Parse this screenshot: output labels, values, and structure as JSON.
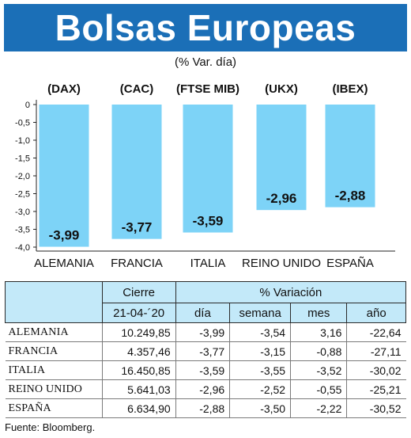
{
  "header": {
    "title": "Bolsas Europeas",
    "subtitle": "(% Var. día)"
  },
  "colors": {
    "header_bg": "#1b6fb7",
    "bar": "#7dd3f7",
    "table_header_bg": "#c3e9f9"
  },
  "chart_data": {
    "type": "bar",
    "categories": [
      "ALEMANIA",
      "FRANCIA",
      "ITALIA",
      "REINO UNIDO",
      "ESPAÑA"
    ],
    "index_labels": [
      "(DAX)",
      "(CAC)",
      "(FTSE MIB)",
      "(UKX)",
      "(IBEX)"
    ],
    "values": [
      -3.99,
      -3.77,
      -3.59,
      -2.96,
      -2.88
    ],
    "value_labels": [
      "-3,99",
      "-3,77",
      "-3,59",
      "-2,96",
      "-2,88"
    ],
    "yticks": [
      0,
      -0.5,
      -1.0,
      -1.5,
      -2.0,
      -2.5,
      -3.0,
      -3.5,
      -4.0
    ],
    "ytick_labels": [
      "0",
      "-0,5",
      "-1,0",
      "-1,5",
      "-2,0",
      "-2,5",
      "-3,0",
      "-3,5",
      "-4,0"
    ],
    "ylim": [
      -4.0,
      0
    ],
    "grid": false,
    "title": "Bolsas Europeas",
    "subtitle": "(% Var. día)"
  },
  "table": {
    "header_row1": [
      "",
      "Cierre",
      "% Variación"
    ],
    "header_row2": [
      "",
      "21-04-´20",
      "día",
      "semana",
      "mes",
      "año"
    ],
    "rows": [
      [
        "ALEMANIA",
        "10.249,85",
        "-3,99",
        "-3,54",
        "3,16",
        "-22,64"
      ],
      [
        "FRANCIA",
        "4.357,46",
        "-3,77",
        "-3,15",
        "-0,88",
        "-27,11"
      ],
      [
        "ITALIA",
        "16.450,85",
        "-3,59",
        "-3,55",
        "-3,52",
        "-30,02"
      ],
      [
        "REINO UNIDO",
        "5.641,03",
        "-2,96",
        "-2,52",
        "-0,55",
        "-25,21"
      ],
      [
        "ESPAÑA",
        "6.634,90",
        "-2,88",
        "-3,50",
        "-2,22",
        "-30,52"
      ]
    ]
  },
  "source": "Fuente: Bloomberg."
}
